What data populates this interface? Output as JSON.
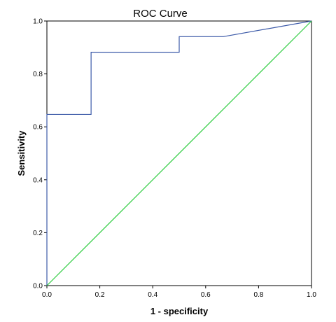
{
  "chart_data": {
    "type": "line",
    "title": "ROC Curve",
    "xlabel": "1 - specificity",
    "ylabel": "Sensitivity",
    "xlim": [
      0.0,
      1.0
    ],
    "ylim": [
      0.0,
      1.0
    ],
    "xticks": [
      "0.0",
      "0.2",
      "0.4",
      "0.6",
      "0.8",
      "1.0"
    ],
    "yticks": [
      "0.0",
      "0.2",
      "0.4",
      "0.6",
      "0.8",
      "1.0"
    ],
    "grid": false,
    "legend": "none",
    "series": [
      {
        "color": "#3c5aa8",
        "x": [
          0.0,
          0.0,
          0.167,
          0.167,
          0.5,
          0.5,
          0.667,
          1.0
        ],
        "y": [
          0.0,
          0.647,
          0.647,
          0.882,
          0.882,
          0.941,
          0.941,
          1.0
        ]
      },
      {
        "color": "#2ecc40",
        "x": [
          0.0,
          1.0
        ],
        "y": [
          0.0,
          1.0
        ]
      }
    ]
  }
}
